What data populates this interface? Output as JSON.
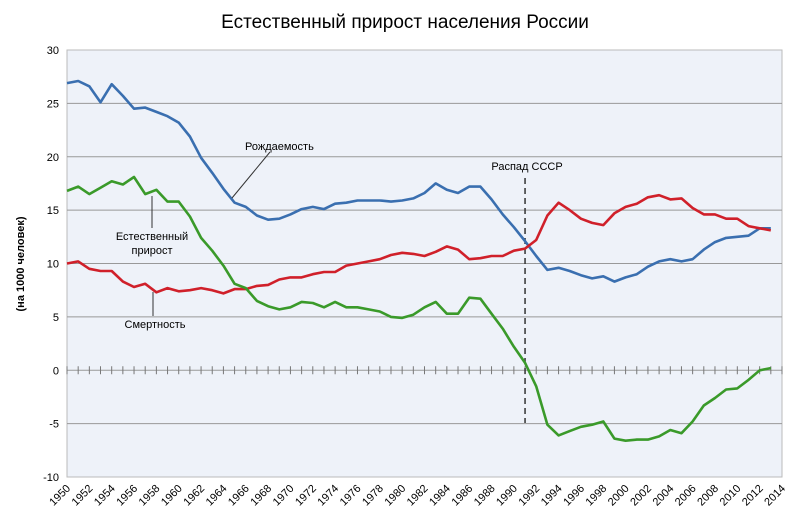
{
  "chart_data": {
    "type": "line",
    "title": "Естественный прирост населения России",
    "ylabel": "(на 1000 человек)",
    "xlabel": "",
    "ylim": [
      -10,
      30
    ],
    "yticks": [
      -10,
      -5,
      0,
      5,
      10,
      15,
      20,
      25,
      30
    ],
    "xlim": [
      1950,
      2014
    ],
    "xticks": [
      1950,
      1952,
      1954,
      1956,
      1958,
      1960,
      1962,
      1964,
      1966,
      1968,
      1970,
      1972,
      1974,
      1976,
      1978,
      1980,
      1982,
      1984,
      1986,
      1988,
      1990,
      1992,
      1994,
      1996,
      1998,
      2000,
      2002,
      2004,
      2006,
      2008,
      2010,
      2012,
      2014
    ],
    "grid": true,
    "x": [
      1950,
      1951,
      1952,
      1953,
      1954,
      1955,
      1956,
      1957,
      1958,
      1959,
      1960,
      1961,
      1962,
      1963,
      1964,
      1965,
      1966,
      1967,
      1968,
      1969,
      1970,
      1971,
      1972,
      1973,
      1974,
      1975,
      1976,
      1977,
      1978,
      1979,
      1980,
      1981,
      1982,
      1983,
      1984,
      1985,
      1986,
      1987,
      1988,
      1989,
      1990,
      1991,
      1992,
      1993,
      1994,
      1995,
      1996,
      1997,
      1998,
      1999,
      2000,
      2001,
      2002,
      2003,
      2004,
      2005,
      2006,
      2007,
      2008,
      2009,
      2010,
      2011,
      2012,
      2013
    ],
    "series": [
      {
        "name": "Рождаемость",
        "color": "#3a6fb0",
        "values": [
          26.9,
          27.1,
          26.6,
          25.1,
          26.8,
          25.7,
          24.5,
          24.6,
          24.2,
          23.8,
          23.2,
          21.9,
          19.9,
          18.5,
          17.0,
          15.7,
          15.3,
          14.5,
          14.1,
          14.2,
          14.6,
          15.1,
          15.3,
          15.1,
          15.6,
          15.7,
          15.9,
          15.9,
          15.9,
          15.8,
          15.9,
          16.1,
          16.6,
          17.5,
          16.9,
          16.6,
          17.2,
          17.2,
          16.0,
          14.6,
          13.4,
          12.1,
          10.7,
          9.4,
          9.6,
          9.3,
          8.9,
          8.6,
          8.8,
          8.3,
          8.7,
          9.0,
          9.7,
          10.2,
          10.4,
          10.2,
          10.4,
          11.3,
          12.0,
          12.4,
          12.5,
          12.6,
          13.3,
          13.3
        ]
      },
      {
        "name": "Смертность",
        "color": "#d0202a",
        "values": [
          10.0,
          10.2,
          9.5,
          9.3,
          9.3,
          8.3,
          7.8,
          8.1,
          7.3,
          7.7,
          7.4,
          7.5,
          7.7,
          7.5,
          7.2,
          7.6,
          7.6,
          7.9,
          8.0,
          8.5,
          8.7,
          8.7,
          9.0,
          9.2,
          9.2,
          9.8,
          10.0,
          10.2,
          10.4,
          10.8,
          11.0,
          10.9,
          10.7,
          11.1,
          11.6,
          11.3,
          10.4,
          10.5,
          10.7,
          10.7,
          11.2,
          11.4,
          12.2,
          14.5,
          15.7,
          15.0,
          14.2,
          13.8,
          13.6,
          14.7,
          15.3,
          15.6,
          16.2,
          16.4,
          16.0,
          16.1,
          15.2,
          14.6,
          14.6,
          14.2,
          14.2,
          13.5,
          13.3,
          13.1
        ]
      },
      {
        "name": "Естественный прирост",
        "color": "#3a9a2a",
        "values": [
          16.8,
          17.2,
          16.5,
          17.1,
          17.7,
          17.4,
          18.1,
          16.5,
          16.9,
          15.8,
          15.8,
          14.4,
          12.4,
          11.2,
          9.8,
          8.1,
          7.7,
          6.5,
          6.0,
          5.7,
          5.9,
          6.4,
          6.3,
          5.9,
          6.4,
          5.9,
          5.9,
          5.7,
          5.5,
          5.0,
          4.9,
          5.2,
          5.9,
          6.4,
          5.3,
          5.3,
          6.8,
          6.7,
          5.3,
          3.9,
          2.2,
          0.7,
          -1.5,
          -5.1,
          -6.1,
          -5.7,
          -5.3,
          -5.1,
          -4.8,
          -6.4,
          -6.6,
          -6.5,
          -6.5,
          -6.2,
          -5.6,
          -5.9,
          -4.8,
          -3.3,
          -2.6,
          -1.8,
          -1.7,
          -0.9,
          0.0,
          0.2
        ]
      }
    ],
    "annotations": [
      {
        "text": "Распад СССР",
        "x": 1991
      }
    ]
  }
}
